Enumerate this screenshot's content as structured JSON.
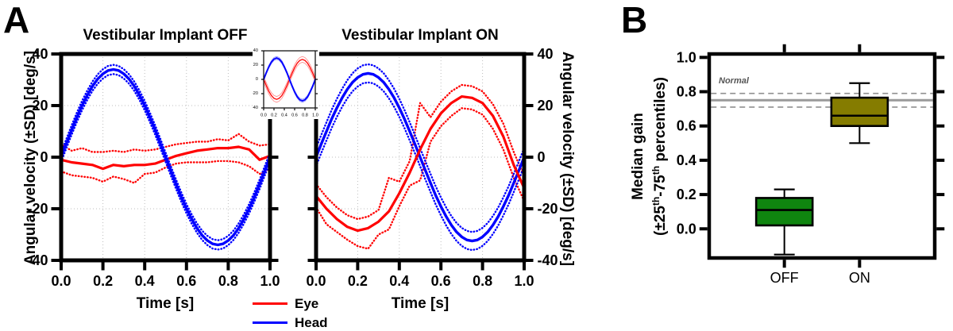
{
  "panel_a": {
    "letter": "A",
    "titles": {
      "off": "Vestibular Implant OFF",
      "on": "Vestibular Implant ON"
    },
    "ylabel_left": "Angular velocity (±SD) [deg/s]",
    "ylabel_right": "Angular velocity (±SD) [deg/s]",
    "xlabel": "Time [s]",
    "legend": [
      {
        "label": "Eye",
        "color": "#ff0000"
      },
      {
        "label": "Head",
        "color": "#0000ff"
      }
    ]
  },
  "panel_b": {
    "letter": "B",
    "ylabel_line1": "Median gain",
    "ylabel_line2": {
      "p1": "(±25",
      "sup1": "th",
      "p2": "-75",
      "sup2": "th",
      "p3": " percentiles)"
    },
    "normal_label": "Normal"
  },
  "chart_data": [
    {
      "id": "vi_off",
      "type": "line",
      "title": "Vestibular Implant OFF",
      "xlabel": "Time [s]",
      "ylabel": "Angular velocity (±SD) [deg/s]",
      "xlim": [
        0,
        1
      ],
      "ylim": [
        -40,
        40
      ],
      "xticks": [
        0.0,
        0.2,
        0.4,
        0.6,
        0.8,
        1.0
      ],
      "yticks": [
        40,
        20,
        0,
        -20,
        -40
      ],
      "ytick_decimals": 0,
      "grid": true,
      "series": [
        {
          "name": "Eye +SD",
          "color": "#ff0000",
          "style": "dotted",
          "width": 2.4,
          "values": [
            5,
            2.5,
            3.5,
            2,
            2,
            2.5,
            2,
            3,
            2.5,
            3,
            4,
            5,
            5.5,
            6,
            6,
            7,
            6.5,
            9,
            6,
            4.5,
            5
          ]
        },
        {
          "name": "Eye -SD",
          "color": "#ff0000",
          "style": "dotted",
          "width": 2.4,
          "values": [
            -5.5,
            -7,
            -7.5,
            -8,
            -9.5,
            -7.5,
            -8.5,
            -10,
            -6.5,
            -6,
            -4,
            -2.5,
            -2,
            -2,
            -2,
            -1.5,
            -1.5,
            -2,
            -3.5,
            -6.5,
            -4.5
          ]
        },
        {
          "name": "Eye",
          "color": "#ff0000",
          "style": "solid",
          "width": 3.2,
          "values": [
            -1,
            -2,
            -2.5,
            -3,
            -4.5,
            -3,
            -3.5,
            -3,
            -3,
            -2.5,
            -1,
            0.5,
            1.5,
            2.5,
            3,
            3.5,
            3.5,
            4,
            3,
            -1,
            0.5
          ]
        },
        {
          "name": "Head",
          "color": "#0000ff",
          "style": "solid",
          "width": 3.4,
          "band_offset": 1.8,
          "values": [
            0,
            5.3,
            10.5,
            15.4,
            20,
            24,
            27.5,
            30.3,
            32.3,
            33.6,
            34,
            33.6,
            32.3,
            30.3,
            27.5,
            24,
            20,
            15.4,
            10.5,
            5.3,
            0,
            -5.3,
            -10.5,
            -15.4,
            -20,
            -24,
            -27.5,
            -30.3,
            -32.3,
            -33.6,
            -34,
            -33.6,
            -32.3,
            -30.3,
            -27.5,
            -24,
            -20,
            -15.4,
            -10.5,
            -5.3,
            0
          ]
        }
      ]
    },
    {
      "id": "vi_on",
      "type": "line",
      "title": "Vestibular Implant ON",
      "xlabel": "Time [s]",
      "ylabel": "Angular velocity (±SD) [deg/s]",
      "xlim": [
        0,
        1
      ],
      "ylim": [
        -40,
        40
      ],
      "xticks": [
        0.0,
        0.2,
        0.4,
        0.6,
        0.8,
        1.0
      ],
      "yticks": [
        40,
        20,
        0,
        -20,
        -40
      ],
      "ytick_decimals": 0,
      "grid": true,
      "series": [
        {
          "name": "Eye +SD",
          "color": "#ff0000",
          "style": "dotted",
          "width": 2.4,
          "values": [
            -10.5,
            -15.5,
            -19.5,
            -22.5,
            -24,
            -23,
            -20.5,
            -8,
            -9.5,
            -1.5,
            21,
            15.5,
            21.5,
            25.5,
            28,
            27.5,
            25.5,
            20.5,
            13,
            2,
            -7.5
          ]
        },
        {
          "name": "Eye -SD",
          "color": "#ff0000",
          "style": "dotted",
          "width": 2.4,
          "values": [
            -19.5,
            -26,
            -29,
            -32,
            -34.5,
            -35.5,
            -30,
            -28,
            -19,
            -11,
            -9,
            6,
            12,
            16,
            19,
            18.5,
            16.5,
            11,
            3,
            -8,
            -17
          ]
        },
        {
          "name": "Head",
          "color": "#0000ff",
          "style": "solid",
          "width": 3.4,
          "band_offset": 3.5,
          "values": [
            0,
            5.1,
            10,
            14.8,
            19.1,
            23,
            26.3,
            29,
            30.9,
            32.1,
            32.5,
            32.1,
            30.9,
            29,
            26.3,
            23,
            19.1,
            14.8,
            10,
            5.1,
            0,
            -5.1,
            -10,
            -14.8,
            -19.1,
            -23,
            -26.3,
            -29,
            -30.9,
            -32.1,
            -32.5,
            -32.1,
            -30.9,
            -29,
            -26.3,
            -23,
            -19.1,
            -14.8,
            -10,
            -5.1,
            0
          ]
        },
        {
          "name": "Eye",
          "color": "#ff0000",
          "style": "solid",
          "width": 3.2,
          "values": [
            -15,
            -20,
            -24,
            -27,
            -28.5,
            -27.5,
            -25,
            -21,
            -14,
            -6,
            3,
            11,
            17,
            21,
            23.5,
            23,
            21,
            16,
            8,
            -3,
            -12
          ]
        }
      ]
    },
    {
      "id": "inset_normal",
      "type": "line",
      "title": "",
      "xlim": [
        0,
        1
      ],
      "ylim": [
        -40,
        40
      ],
      "xticks": [
        0.0,
        0.2,
        0.4,
        0.6,
        0.8,
        1.0
      ],
      "yticks": [
        40,
        20,
        0,
        -20,
        -40
      ],
      "ytick_decimals": 0,
      "grid": false,
      "series": [
        {
          "name": "Eye",
          "color": "#ff0000",
          "style": "solid",
          "width": 1.3,
          "band_offset": 4,
          "band_color": "#ff9090",
          "band_style": "thin",
          "values": [
            0,
            -8.7,
            -16.5,
            -22.7,
            -26.6,
            -28,
            -26.6,
            -22.7,
            -16.5,
            -8.7,
            0,
            8.7,
            16.5,
            22.7,
            26.6,
            28,
            26.6,
            22.7,
            16.5,
            8.7,
            0
          ]
        },
        {
          "name": "Head",
          "color": "#0000ff",
          "style": "solid",
          "width": 1.8,
          "band_offset": 2,
          "band_color": "#9090ff",
          "band_style": "thin",
          "values": [
            0,
            9.3,
            17.6,
            24.3,
            28.5,
            30,
            28.5,
            24.3,
            17.6,
            9.3,
            0,
            -9.3,
            -17.6,
            -24.3,
            -28.5,
            -30,
            -28.5,
            -24.3,
            -17.6,
            -9.3,
            0
          ]
        }
      ]
    },
    {
      "id": "median_gain",
      "type": "box",
      "ylabel": "Median gain (±25th-75th percentiles)",
      "categories": [
        "OFF",
        "ON"
      ],
      "ylim": [
        -0.17,
        1.02
      ],
      "yticks": [
        1.0,
        0.8,
        0.6,
        0.4,
        0.2,
        0.0
      ],
      "ytick_decimals": 1,
      "normal_band": {
        "label": "Normal",
        "center": 0.75,
        "upper": 0.79,
        "lower": 0.71
      },
      "boxes": [
        {
          "category": "OFF",
          "color": "#0f850f",
          "whisker_low": -0.15,
          "q1": 0.02,
          "median": 0.11,
          "q3": 0.18,
          "whisker_high": 0.23
        },
        {
          "category": "ON",
          "color": "#857c00",
          "whisker_low": 0.5,
          "q1": 0.6,
          "median": 0.66,
          "q3": 0.765,
          "whisker_high": 0.85
        }
      ]
    }
  ]
}
